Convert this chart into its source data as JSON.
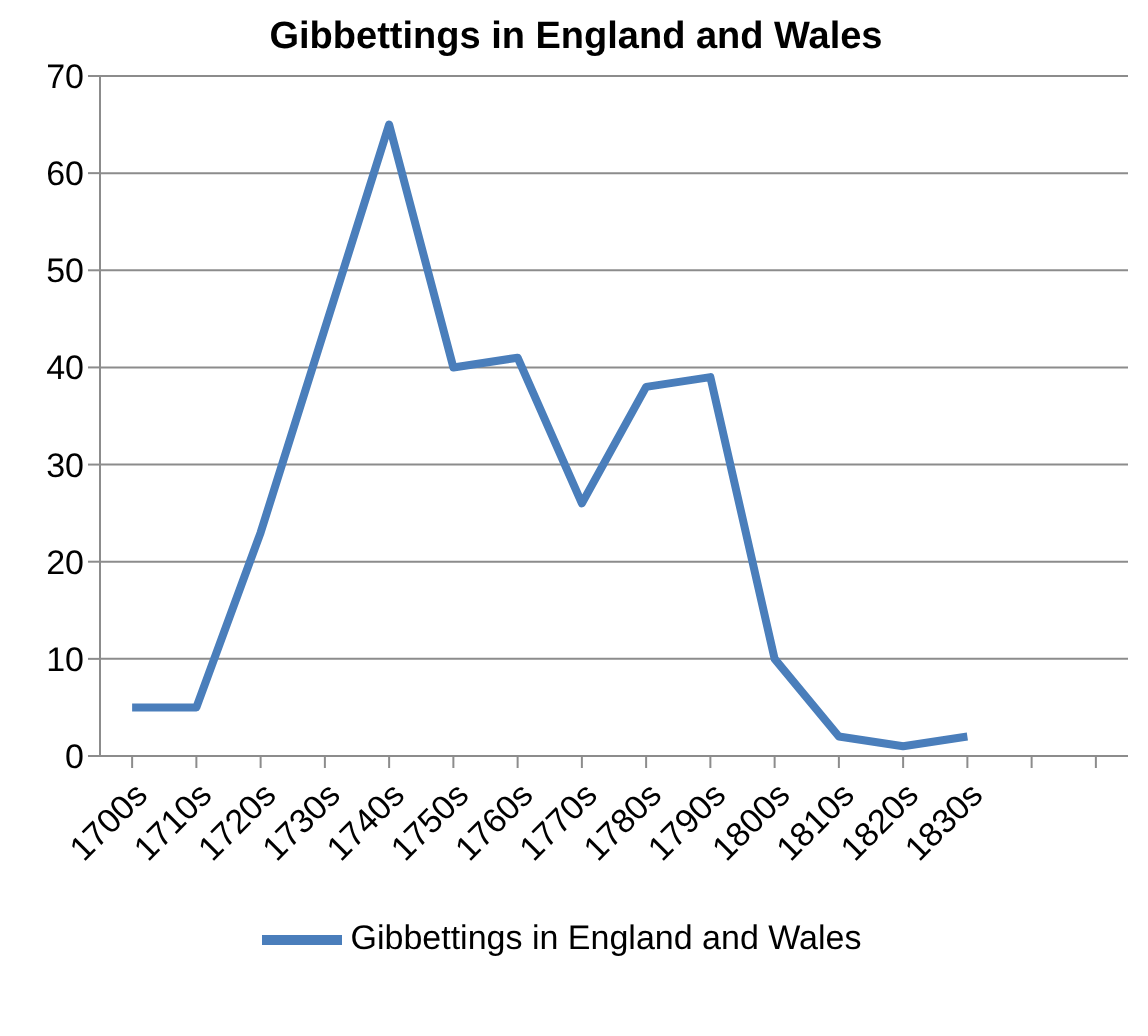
{
  "chart_data": {
    "type": "line",
    "title": "Gibbettings in England and Wales",
    "categories": [
      "1700s",
      "1710s",
      "1720s",
      "1730s",
      "1740s",
      "1750s",
      "1760s",
      "1770s",
      "1780s",
      "1790s",
      "1800s",
      "1810s",
      "1820s",
      "1830s",
      null,
      null
    ],
    "series": [
      {
        "name": "Gibbettings in England and Wales",
        "color": "#4a7ebb",
        "values": [
          5,
          5,
          23,
          44,
          65,
          40,
          41,
          26,
          38,
          39,
          10,
          2,
          1,
          2,
          null,
          null
        ]
      }
    ],
    "ylim": [
      0,
      70
    ],
    "yticks": [
      0,
      10,
      20,
      30,
      40,
      50,
      60,
      70
    ],
    "grid": "y",
    "legend": "bottom",
    "marker": "none",
    "line_style": "solid"
  }
}
